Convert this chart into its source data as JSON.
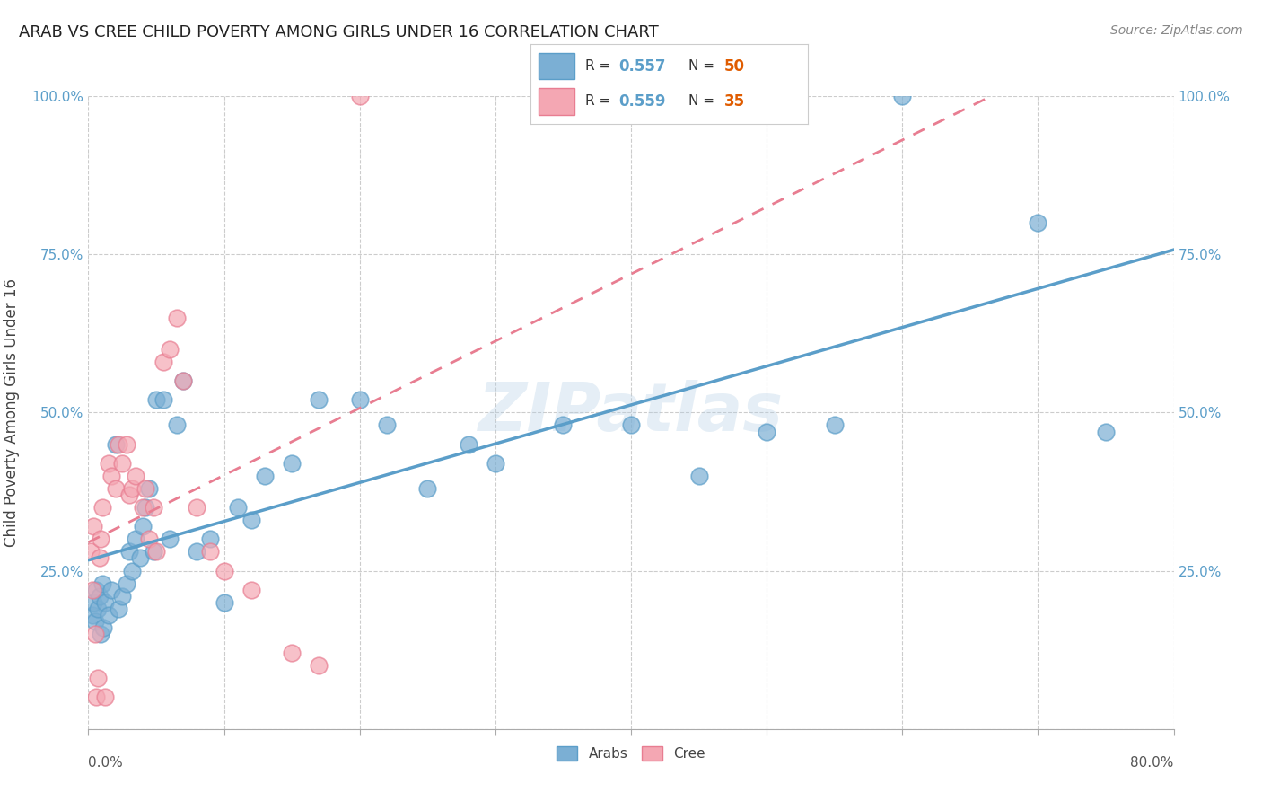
{
  "title": "ARAB VS CREE CHILD POVERTY AMONG GIRLS UNDER 16 CORRELATION CHART",
  "source": "Source: ZipAtlas.com",
  "ylabel": "Child Poverty Among Girls Under 16",
  "watermark": "ZIPatlas",
  "xmin": 0.0,
  "xmax": 0.8,
  "ymin": 0.0,
  "ymax": 1.0,
  "arab_R": "0.557",
  "arab_N": "50",
  "cree_R": "0.559",
  "cree_N": "35",
  "arab_color": "#7bafd4",
  "arab_edge_color": "#5b9ec9",
  "cree_color": "#f4a7b3",
  "cree_edge_color": "#e87d91",
  "arab_line_color": "#5b9ec9",
  "cree_line_color": "#e87d91",
  "tick_color": "#5b9ec9",
  "yticks": [
    0.0,
    0.25,
    0.5,
    0.75,
    1.0
  ],
  "ytick_labels": [
    "",
    "25.0%",
    "50.0%",
    "75.0%",
    "100.0%"
  ],
  "arab_x": [
    0.003,
    0.004,
    0.005,
    0.006,
    0.007,
    0.008,
    0.009,
    0.01,
    0.011,
    0.012,
    0.015,
    0.017,
    0.02,
    0.022,
    0.025,
    0.028,
    0.03,
    0.032,
    0.035,
    0.038,
    0.04,
    0.042,
    0.045,
    0.048,
    0.05,
    0.055,
    0.06,
    0.065,
    0.07,
    0.08,
    0.09,
    0.1,
    0.11,
    0.12,
    0.13,
    0.15,
    0.17,
    0.2,
    0.22,
    0.25,
    0.28,
    0.3,
    0.35,
    0.4,
    0.45,
    0.5,
    0.55,
    0.6,
    0.7,
    0.75
  ],
  "arab_y": [
    0.18,
    0.2,
    0.17,
    0.22,
    0.19,
    0.21,
    0.15,
    0.23,
    0.16,
    0.2,
    0.18,
    0.22,
    0.45,
    0.19,
    0.21,
    0.23,
    0.28,
    0.25,
    0.3,
    0.27,
    0.32,
    0.35,
    0.38,
    0.28,
    0.52,
    0.52,
    0.3,
    0.48,
    0.55,
    0.28,
    0.3,
    0.2,
    0.35,
    0.33,
    0.4,
    0.42,
    0.52,
    0.52,
    0.48,
    0.38,
    0.45,
    0.42,
    0.48,
    0.48,
    0.4,
    0.47,
    0.48,
    1.0,
    0.8,
    0.47
  ],
  "cree_x": [
    0.002,
    0.003,
    0.004,
    0.005,
    0.006,
    0.007,
    0.008,
    0.009,
    0.01,
    0.012,
    0.015,
    0.017,
    0.02,
    0.022,
    0.025,
    0.028,
    0.03,
    0.032,
    0.035,
    0.04,
    0.042,
    0.045,
    0.048,
    0.05,
    0.055,
    0.06,
    0.065,
    0.07,
    0.08,
    0.09,
    0.1,
    0.12,
    0.15,
    0.17,
    0.2
  ],
  "cree_y": [
    0.28,
    0.22,
    0.32,
    0.15,
    0.05,
    0.08,
    0.27,
    0.3,
    0.35,
    0.05,
    0.42,
    0.4,
    0.38,
    0.45,
    0.42,
    0.45,
    0.37,
    0.38,
    0.4,
    0.35,
    0.38,
    0.3,
    0.35,
    0.28,
    0.58,
    0.6,
    0.65,
    0.55,
    0.35,
    0.28,
    0.25,
    0.22,
    0.12,
    0.1,
    1.0
  ]
}
